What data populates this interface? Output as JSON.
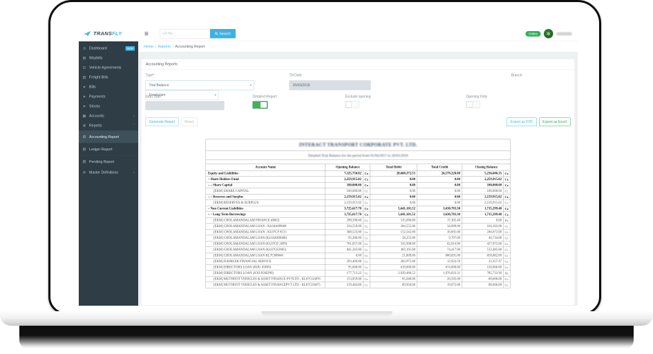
{
  "colors": {
    "accent": "#3cb9e8",
    "online_green": "#2fb457",
    "sidebar_bg": "#2e3d46",
    "toggle_green": "#47ad5f",
    "excel_green": "#2fae60",
    "pdf_cyan": "#35c3dd"
  },
  "header": {
    "brand": {
      "name_primary": "TRANS",
      "name_secondary": "FLY"
    },
    "hamburger_icon": "≡",
    "search": {
      "placeholder": "LR No.",
      "button_label": "Search"
    },
    "status_badge": "Online",
    "avatar_glyph": "✻"
  },
  "sidebar": {
    "items": [
      {
        "name": "dashboard",
        "label": "Dashboard",
        "icon": "◷",
        "badge": "NEW"
      },
      {
        "name": "waybills",
        "label": "Waybills",
        "icon": "▤"
      },
      {
        "name": "vehicle-agreements",
        "label": "Vehicle Agreements",
        "icon": "⊟"
      },
      {
        "name": "freight-bills",
        "label": "Freight Bills",
        "icon": "▥"
      },
      {
        "name": "bills",
        "label": "Bills",
        "icon": "➤"
      },
      {
        "name": "payments",
        "label": "Payments",
        "icon": "➤"
      },
      {
        "name": "stocks",
        "label": "Stocks",
        "icon": "➤"
      },
      {
        "name": "accounts",
        "label": "Accounts",
        "icon": "▦",
        "chevron": "‹"
      },
      {
        "name": "reports",
        "label": "Reports",
        "icon": "≣",
        "chevron": "ˇ"
      },
      {
        "name": "accounting-report",
        "label": "Accounting Report",
        "icon": "▧",
        "sub": true,
        "active": true
      },
      {
        "name": "ledger-report",
        "label": "Ledger Report",
        "icon": "▧",
        "sub": true
      },
      {
        "name": "pending-report",
        "label": "Pending Report",
        "icon": "▧",
        "sub": true
      },
      {
        "name": "master-definitions",
        "label": "Master Definitions",
        "icon": "⚙",
        "chevron": "‹"
      }
    ]
  },
  "breadcrumb": {
    "items": [
      "Home",
      "Reports",
      "Accounting Report"
    ],
    "separator": "/"
  },
  "panel_title": "Accounting Reports",
  "filters": {
    "type": {
      "label": "Type",
      "required": "*",
      "value": "Trial Balance"
    },
    "till_date": {
      "label": "Till Date",
      "value": "26/03/2018"
    },
    "branch": {
      "label": "Branch",
      "value": "Ernakulam"
    },
    "start_date": {
      "label": "Start Date",
      "value": ""
    },
    "detailed_report": {
      "label": "Detailed Report",
      "on": true
    },
    "exclude_opening": {
      "label": "Exclude opening",
      "on": false
    },
    "opening_only": {
      "label": "Opening Only",
      "on": false
    },
    "generate_label": "Generate Report",
    "reset_label": "Reset",
    "export_pdf_label": "Export as PDF",
    "export_excel_label": "Export as Excel",
    "select_caret": "▾"
  },
  "report": {
    "company": "INTERACT TRANSPORT CORPORATE PVT. LTD.",
    "subtitle": "Detailed Trial Balance for the period from 01/04/2017 to 26/03/2018",
    "redacted_blur": true,
    "table": {
      "headers": {
        "account": "Account Name",
        "opening": "Opening Balance",
        "debit": "Total Debit",
        "credit": "Total Credit",
        "closing": "Closing Balance"
      },
      "rows": [
        {
          "t": "g",
          "name": "Equity and Liabilities",
          "opening": "7,325,750.02",
          "cr1": "Cr.",
          "debit": "28,668,372.55",
          "credit": "26,579,228.88",
          "closing": "5,236,606.35",
          "cr2": "Cr."
        },
        {
          "t": "g",
          "name": "– Share Holders Fund",
          "opening": "2,259,915.02",
          "cr1": "Cr.",
          "debit": "0.00",
          "credit": "0.00",
          "closing": "2,259,915.02",
          "cr2": "Cr."
        },
        {
          "t": "g",
          "name": "– – Share Capital",
          "opening": "100,000.00",
          "cr1": "Cr.",
          "debit": "0.00",
          "credit": "0.00",
          "closing": "100,000.00",
          "cr2": "Cr."
        },
        {
          "t": "l",
          "name": "[EKM] SHARE CAPITAL",
          "opening": "100,000.00",
          "cr1": "Cr.",
          "debit": "0.00",
          "credit": "0.00",
          "closing": "100,000.00",
          "cr2": "Cr."
        },
        {
          "t": "g",
          "name": "– – Reserves and Surplus",
          "opening": "2,159,915.02",
          "cr1": "Cr.",
          "debit": "0.00",
          "credit": "0.00",
          "closing": "2,159,915.02",
          "cr2": "Cr."
        },
        {
          "t": "l",
          "name": "[EKM] RESERVES & SURPLUS",
          "opening": "2,159,915.02",
          "cr1": "Cr.",
          "debit": "0.00",
          "credit": "0.00",
          "closing": "2,159,915.02",
          "cr2": "Cr."
        },
        {
          "t": "g",
          "name": "– Non Current Liabilities",
          "opening": "3,725,617.70",
          "cr1": "Cr.",
          "debit": "5,641,101.52",
          "credit": "3,630,783.30",
          "closing": "1,715,299.48",
          "cr2": "Cr."
        },
        {
          "t": "g",
          "name": "– – Long Term Borrowings",
          "opening": "3,725,617.70",
          "cr1": "Cr.",
          "debit": "5,641,101.52",
          "credit": "3,630,783.30",
          "closing": "1,715,299.48",
          "cr2": "Cr."
        },
        {
          "t": "l",
          "name": "[EKM] CHOLAMANDALAM FINANCE (8602)",
          "opening": "298,390.60",
          "cr1": "Cr.",
          "debit": "315,696.00",
          "credit": "17,305.40",
          "closing": "0.00",
          "cr2": "Dr."
        },
        {
          "t": "l",
          "name": "[EKM] CHOLAMANDALAM LOAN - KL04AH9668",
          "opening": "334,559.00",
          "cr1": "Cr.",
          "debit": "204,555.00",
          "credit": "34,099.00",
          "closing": "164,103.00",
          "cr2": "Cr."
        },
        {
          "t": "l",
          "name": "[EKM] CHOLAMANDALAM LOAN - KL07CF 8515",
          "opening": "368,523.00",
          "cr1": "Cr.",
          "debit": "152,542.00",
          "credit": "30,691.00",
          "closing": "246,672.00",
          "cr2": "Cr."
        },
        {
          "t": "l",
          "name": "[EKM] CHOLAMANDALAM LOAN (KL04AH9668)",
          "opening": "95,280.00",
          "cr1": "Cr.",
          "debit": "58,253.00",
          "credit": "9,707.00",
          "closing": "46,734.00",
          "cr2": "Cr."
        },
        {
          "t": "l",
          "name": "[EKM] CHOLAMANDALAM LOAN (KL07CE 2699)",
          "opening": "701,057.00",
          "cr1": "Cr.",
          "debit": "335,998.00",
          "credit": "62,014.00",
          "closing": "427,073.00",
          "cr2": "Cr."
        },
        {
          "t": "l",
          "name": "[EKM] CHOLAMANDALAM LOAN (KL07CE2665)",
          "opening": "841,263.00",
          "cr1": "Cr.",
          "debit": "403,195.00",
          "credit": "74,417.00",
          "closing": "512,485.00",
          "cr2": "Cr."
        },
        {
          "t": "l",
          "name": "[EKM] CHOLAMANDALAM LOAN KL7CM8646",
          "opening": "0.00",
          "cr1": "Cr.",
          "debit": "21,809.00",
          "credit": "680,691.00",
          "closing": "658,882.00",
          "cr2": "Cr."
        },
        {
          "t": "l",
          "name": "[EKM] DAIMLER FINANCIAL SERVICE",
          "opening": "293,409.88",
          "cr1": "Cr.",
          "debit": "282,975.00",
          "credit": "12,922.59",
          "closing": "23,357.47",
          "cr2": "Cr."
        },
        {
          "t": "l",
          "name": "[EKM] DIRECTORS LOAN (BIJU JOHN)",
          "opening": "95,000.00",
          "cr1": "Cr.",
          "debit": "619,000.00",
          "credit": "674,000.00",
          "closing": "150,000.00",
          "cr2": "Cr."
        },
        {
          "t": "l",
          "name": "[EKM] DIRECTORS LOAN (JOJI JOSEPH)",
          "opening": "177,713.22",
          "cr1": "Cr.",
          "debit": "2,939,480.52",
          "credit": "1,976,033.31",
          "closing": "785,733.99",
          "cr2": "Dr."
        },
        {
          "t": "l",
          "name": "[EKM] MUTHOOT VEHICLES & ASSET FINANCE PVTLTD - KL07CG6876",
          "opening": "153,059.00",
          "cr1": "Cr.",
          "debit": "85,048.00",
          "credit": "20,595.00",
          "closing": "88,606.00",
          "cr2": "Cr."
        },
        {
          "t": "l",
          "name": "[EKM] MUTHOOT VEHICLES & ASSET FINANCEPVT LTD - KL07CG6875",
          "opening": "159,484.00",
          "cr1": "Cr.",
          "debit": "89,950.00",
          "credit": "19,072.00",
          "closing": "88,606.00",
          "cr2": "Cr."
        }
      ]
    }
  }
}
